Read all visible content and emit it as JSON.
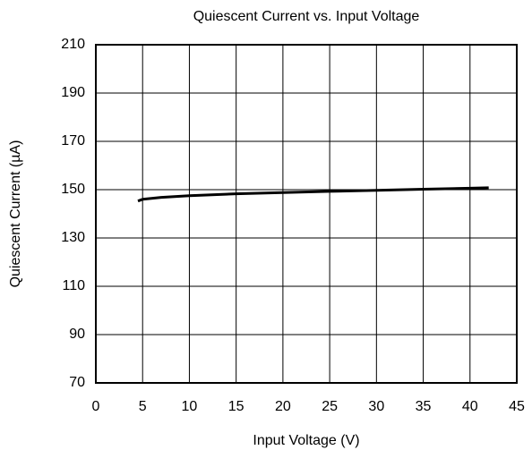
{
  "chart_data": {
    "type": "line",
    "title": "Quiescent Current vs. Input Voltage",
    "xlabel": "Input Voltage (V)",
    "ylabel": "Quiescent Current  (µA)",
    "x": [
      4.5,
      5,
      7,
      10,
      15,
      20,
      25,
      30,
      35,
      40,
      42
    ],
    "series": [
      {
        "name": "Quiescent Current",
        "color": "#000000",
        "values": [
          145.3,
          146,
          146.8,
          147.5,
          148.3,
          148.8,
          149.3,
          149.7,
          150.2,
          150.6,
          150.8
        ]
      }
    ],
    "xlim": [
      0,
      45
    ],
    "xticks": [
      0,
      5,
      10,
      15,
      20,
      25,
      30,
      35,
      40,
      45
    ],
    "ylim": [
      70,
      210
    ],
    "yticks": [
      70,
      90,
      110,
      130,
      150,
      170,
      190,
      210
    ],
    "grid": true
  }
}
